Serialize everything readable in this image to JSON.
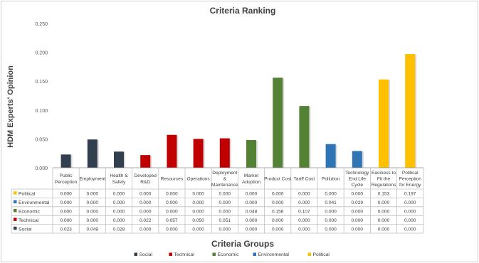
{
  "chart_data": {
    "type": "bar",
    "title": "Criteria Ranking",
    "ylabel": "HDM Experts' Opinion",
    "xlabel": "Criteria Groups",
    "ylim": [
      0,
      0.25
    ],
    "yticks": [
      "0.000",
      "0.050",
      "0.100",
      "0.150",
      "0.200",
      "0.250"
    ],
    "grid": false,
    "legend_position": "bottom",
    "categories": [
      [
        "Public",
        "Perception"
      ],
      [
        "Employment"
      ],
      [
        "Health &",
        "Safety"
      ],
      [
        "Developed",
        "R&D"
      ],
      [
        "Resources"
      ],
      [
        "Operations"
      ],
      [
        "Deployment",
        "&",
        "Maintenance"
      ],
      [
        "Market",
        "Adoption"
      ],
      [
        "Product Cost"
      ],
      [
        "Tariff Cost"
      ],
      [
        "Pollution"
      ],
      [
        "Technology",
        "End Life",
        "Cycle"
      ],
      [
        "Easiness to",
        "Fit the",
        "Regulations"
      ],
      [
        "Political",
        "Perception",
        "for Energy"
      ]
    ],
    "series": [
      {
        "name": "Political",
        "color": "#FFC000",
        "values": [
          0.0,
          0.0,
          0.0,
          0.0,
          0.0,
          0.0,
          0.0,
          0.0,
          0.0,
          0.0,
          0.0,
          0.0,
          0.153,
          0.197
        ],
        "labels": [
          "0.000",
          "0.000",
          "0.000",
          "0.000",
          "0.000",
          "0.000",
          "0.000",
          "0.000",
          "0.000",
          "0.000",
          "0.000",
          "0.000",
          "0.153",
          "0.197"
        ]
      },
      {
        "name": "Environmental",
        "color": "#2E75B6",
        "values": [
          0.0,
          0.0,
          0.0,
          0.0,
          0.0,
          0.0,
          0.0,
          0.0,
          0.0,
          0.0,
          0.041,
          0.029,
          0.0,
          0.0
        ],
        "labels": [
          "0.000",
          "0.000",
          "0.000",
          "0.000",
          "0.000",
          "0.000",
          "0.000",
          "0.000",
          "0.000",
          "0.000",
          "0.041",
          "0.029",
          "0.000",
          "0.000"
        ]
      },
      {
        "name": "Economic",
        "color": "#548235",
        "values": [
          0.0,
          0.0,
          0.0,
          0.0,
          0.0,
          0.0,
          0.0,
          0.048,
          0.156,
          0.107,
          0.0,
          0.0,
          0.0,
          0.0
        ],
        "labels": [
          "0.000",
          "0.000",
          "0.000",
          "0.000",
          "0.000",
          "0.000",
          "0.000",
          "0.048",
          "0.156",
          "0.107",
          "0.000",
          "0.000",
          "0.000",
          "0.000"
        ]
      },
      {
        "name": "Technical",
        "color": "#C00000",
        "values": [
          0.0,
          0.0,
          0.0,
          0.022,
          0.057,
          0.05,
          0.051,
          0.0,
          0.0,
          0.0,
          0.0,
          0.0,
          0.0,
          0.0
        ],
        "labels": [
          "0.000",
          "0.000",
          "0.000",
          "0.022",
          "0.057",
          "0.050",
          "0.051",
          "0.000",
          "0.000",
          "0.000",
          "0.000",
          "0.000",
          "0.000",
          "0.000"
        ]
      },
      {
        "name": "Social",
        "color": "#323F4F",
        "values": [
          0.023,
          0.049,
          0.028,
          0.0,
          0.0,
          0.0,
          0.0,
          0.0,
          0.0,
          0.0,
          0.0,
          0.0,
          0.0,
          0.0
        ],
        "labels": [
          "0.023",
          "0.049",
          "0.028",
          "0.000",
          "0.000",
          "0.000",
          "0.000",
          "0.000",
          "0.000",
          "0.000",
          "0.000",
          "0.000",
          "0.000",
          "0.000"
        ]
      }
    ],
    "legend_order": [
      "Social",
      "Technical",
      "Economic",
      "Environmental",
      "Political"
    ]
  }
}
